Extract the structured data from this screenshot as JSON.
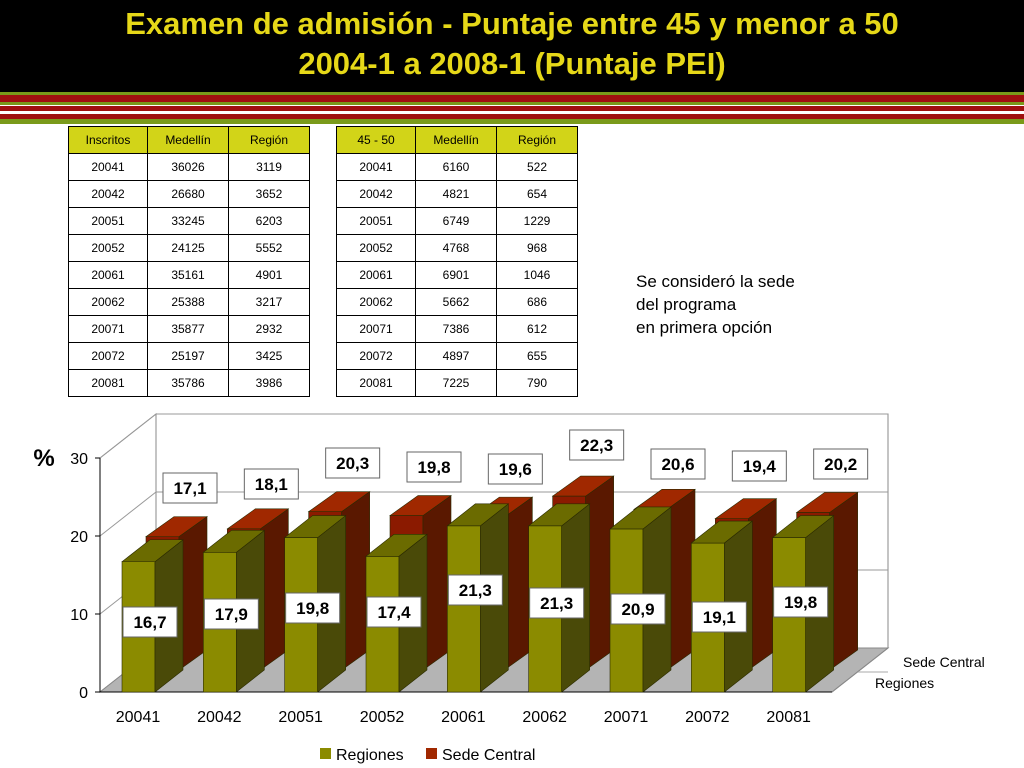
{
  "title": {
    "line1": "Examen de admisión - Puntaje entre 45 y menor a 50",
    "line2": "2004-1 a 2008-1 (Puntaje PEI)"
  },
  "colors": {
    "header_bg": "#000000",
    "title_text": "#e6d818",
    "stripe_red": "#a01010",
    "stripe_green": "#7a9a1a",
    "table_header_bg": "#d2d418",
    "regiones_front": "#8b8b00",
    "regiones_side": "#4a4a08",
    "sede_front": "#8b1a00",
    "sede_side": "#5a1800"
  },
  "table_inscritos": {
    "headers": [
      "Inscritos",
      "Medellín",
      "Región"
    ],
    "rows": [
      [
        "20041",
        "36026",
        "3119"
      ],
      [
        "20042",
        "26680",
        "3652"
      ],
      [
        "20051",
        "33245",
        "6203"
      ],
      [
        "20052",
        "24125",
        "5552"
      ],
      [
        "20061",
        "35161",
        "4901"
      ],
      [
        "20062",
        "25388",
        "3217"
      ],
      [
        "20071",
        "35877",
        "2932"
      ],
      [
        "20072",
        "25197",
        "3425"
      ],
      [
        "20081",
        "35786",
        "3986"
      ]
    ]
  },
  "table_rango": {
    "headers": [
      "45 - 50",
      "Medellín",
      "Región"
    ],
    "rows": [
      [
        "20041",
        "6160",
        "522"
      ],
      [
        "20042",
        "4821",
        "654"
      ],
      [
        "20051",
        "6749",
        "1229"
      ],
      [
        "20052",
        "4768",
        "968"
      ],
      [
        "20061",
        "6901",
        "1046"
      ],
      [
        "20062",
        "5662",
        "686"
      ],
      [
        "20071",
        "7386",
        "612"
      ],
      [
        "20072",
        "4897",
        "655"
      ],
      [
        "20081",
        "7225",
        "790"
      ]
    ]
  },
  "note": {
    "line1": "Se consideró la sede",
    "line2": "del programa",
    "line3": "en primera opción"
  },
  "chart_data": {
    "type": "bar",
    "title": "",
    "ylabel": "%",
    "xlabel": "",
    "ylim": [
      0,
      30
    ],
    "yticks": [
      0,
      10,
      20,
      30
    ],
    "grid": true,
    "legend_position": "bottom",
    "categories": [
      "20041",
      "20042",
      "20051",
      "20052",
      "20061",
      "20062",
      "20071",
      "20072",
      "20081"
    ],
    "series": [
      {
        "name": "Regiones",
        "values": [
          16.7,
          17.9,
          19.8,
          17.4,
          21.3,
          21.3,
          20.9,
          19.1,
          19.8
        ],
        "labels": [
          "16,7",
          "17,9",
          "19,8",
          "17,4",
          "21,3",
          "21,3",
          "20,9",
          "19,1",
          "19,8"
        ]
      },
      {
        "name": "Sede Central",
        "values": [
          17.1,
          18.1,
          20.3,
          19.8,
          19.6,
          22.3,
          20.6,
          19.4,
          20.2
        ],
        "labels": [
          "17,1",
          "18,1",
          "20,3",
          "19,8",
          "19,6",
          "22,3",
          "20,6",
          "19,4",
          "20,2"
        ]
      }
    ],
    "depth_axis_labels": [
      "Sede Central",
      "Regiones"
    ]
  }
}
